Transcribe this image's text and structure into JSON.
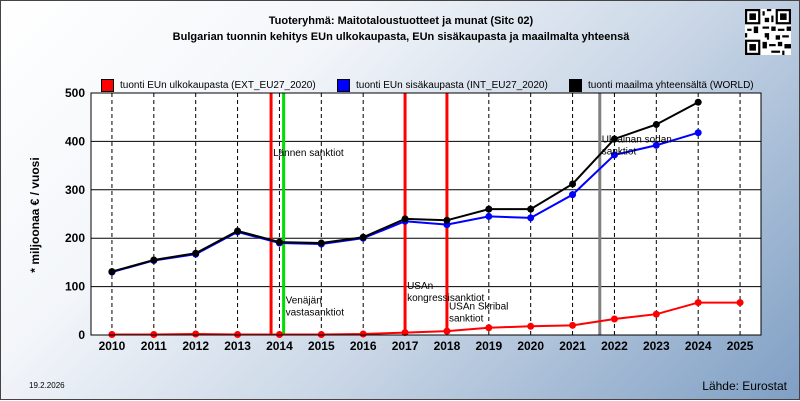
{
  "header": {
    "title_line1": "Tuoteryhmä: Maitotaloustuotteet ja munat (Sitc 02)",
    "title_line2": "Bulgarian tuonnin kehitys EUn ulkokaupasta, EUn sisäkaupasta ja maailmalta yhteensä"
  },
  "footer": {
    "date": "19.2.2026",
    "source": "Lähde: Eurostat"
  },
  "chart_data": {
    "type": "line",
    "ylabel": "* miljoonaa € / vuosi",
    "xlim": [
      2010,
      2025
    ],
    "ylim": [
      0,
      500
    ],
    "yticks": [
      0,
      100,
      200,
      300,
      400,
      500
    ],
    "xticks": [
      2010,
      2011,
      2012,
      2013,
      2014,
      2015,
      2016,
      2017,
      2018,
      2019,
      2020,
      2021,
      2022,
      2023,
      2024,
      2025
    ],
    "grid": true,
    "legend_position": "top",
    "series": [
      {
        "name": "tuonti EUn ulkokaupasta (EXT_EU27_2020)",
        "color": "#ff0000",
        "x": [
          2010,
          2011,
          2012,
          2013,
          2014,
          2015,
          2016,
          2017,
          2018,
          2019,
          2020,
          2021,
          2022,
          2023,
          2024,
          2025
        ],
        "values": [
          1,
          1,
          2,
          1,
          1,
          1,
          2,
          5,
          8,
          15,
          18,
          20,
          33,
          43,
          67,
          67
        ]
      },
      {
        "name": "tuonti EUn sisäkaupasta (INT_EU27_2020)",
        "color": "#0000ff",
        "x": [
          2010,
          2011,
          2012,
          2013,
          2014,
          2015,
          2016,
          2017,
          2018,
          2019,
          2020,
          2021,
          2022,
          2023,
          2024
        ],
        "values": [
          130,
          154,
          167,
          213,
          190,
          188,
          200,
          235,
          228,
          245,
          242,
          290,
          372,
          392,
          418
        ]
      },
      {
        "name": "tuonti maailma yhteensältä (WORLD)",
        "color": "#000000",
        "x": [
          2010,
          2011,
          2012,
          2013,
          2014,
          2015,
          2016,
          2017,
          2018,
          2019,
          2020,
          2021,
          2022,
          2023,
          2024
        ],
        "values": [
          131,
          155,
          169,
          215,
          192,
          190,
          202,
          240,
          237,
          260,
          260,
          312,
          405,
          435,
          481
        ]
      }
    ],
    "annotations": [
      {
        "x": 2013.8,
        "color": "#ff0000",
        "label": "Lännen sanktiot",
        "label_y": 370
      },
      {
        "x": 2014.1,
        "color": "#00dd00",
        "label": "Venäjän vastasanktiot",
        "label_y": 65
      },
      {
        "x": 2017.0,
        "color": "#ff0000",
        "label": "USAn kongressisanktiot",
        "label_y": 95
      },
      {
        "x": 2018.0,
        "color": "#ff0000",
        "label": "USAn Skribal sanktiot",
        "label_y": 53
      },
      {
        "x": 2021.65,
        "color": "#808080",
        "label": "Ukrainan sodan sanktiot",
        "label_y": 398
      }
    ]
  }
}
